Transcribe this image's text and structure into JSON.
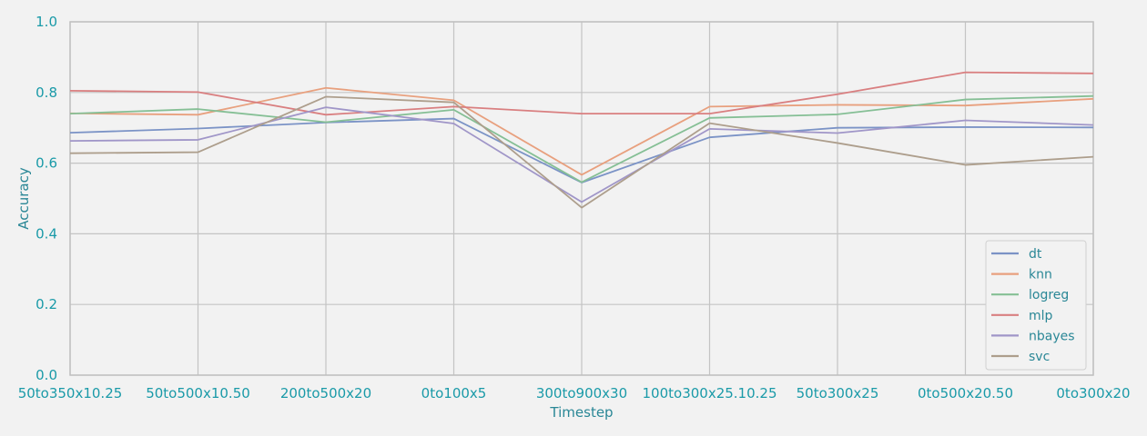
{
  "chart_data": {
    "type": "line",
    "title": "",
    "xlabel": "Timestep",
    "ylabel": "Accuracy",
    "ylim": [
      0,
      1
    ],
    "yticks": [
      "0.0",
      "0.2",
      "0.4",
      "0.6",
      "0.8",
      "1.0"
    ],
    "grid": true,
    "legend_position": "bottom-right",
    "categories": [
      "50to350x10.25",
      "50to500x10.50",
      "200to500x20",
      "0to100x5",
      "300to900x30",
      "100to300x25.10.25",
      "50to300x25",
      "0to500x20.50",
      "0to300x20"
    ],
    "series": [
      {
        "name": "dt",
        "color": "#7b93c6",
        "values": [
          0.686,
          0.698,
          0.715,
          0.726,
          0.545,
          0.673,
          0.7,
          0.702,
          0.701
        ]
      },
      {
        "name": "knn",
        "color": "#e8a07e",
        "values": [
          0.741,
          0.737,
          0.813,
          0.778,
          0.567,
          0.76,
          0.765,
          0.763,
          0.782
        ]
      },
      {
        "name": "logreg",
        "color": "#85bf95",
        "values": [
          0.74,
          0.753,
          0.716,
          0.751,
          0.546,
          0.728,
          0.738,
          0.78,
          0.79
        ]
      },
      {
        "name": "mlp",
        "color": "#d97f80",
        "values": [
          0.805,
          0.801,
          0.737,
          0.76,
          0.74,
          0.74,
          0.795,
          0.857,
          0.854
        ]
      },
      {
        "name": "nbayes",
        "color": "#a096c8",
        "values": [
          0.663,
          0.666,
          0.758,
          0.712,
          0.49,
          0.697,
          0.685,
          0.721,
          0.708
        ]
      },
      {
        "name": "svc",
        "color": "#ad9e8c",
        "values": [
          0.628,
          0.631,
          0.788,
          0.772,
          0.474,
          0.713,
          0.657,
          0.595,
          0.618
        ]
      }
    ]
  }
}
